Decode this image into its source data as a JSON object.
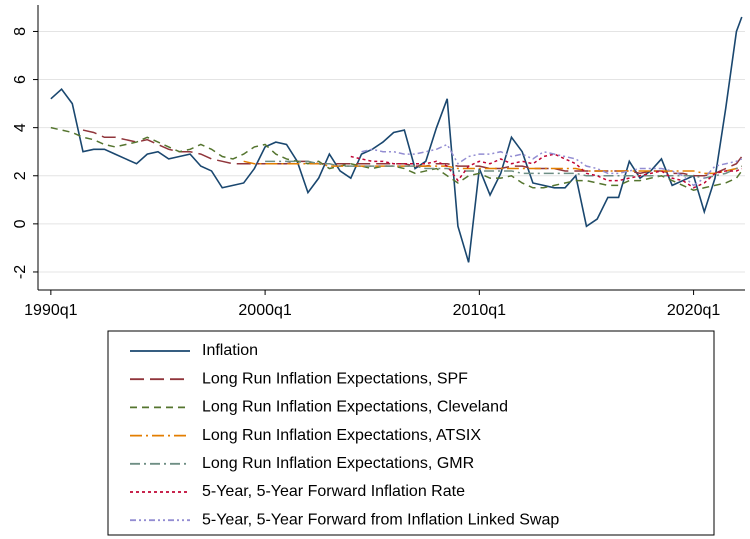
{
  "chart_data": {
    "type": "line",
    "x": [
      1990,
      1990.5,
      1991,
      1991.5,
      1992,
      1992.5,
      1993,
      1993.5,
      1994,
      1994.5,
      1995,
      1995.5,
      1996,
      1996.5,
      1997,
      1997.5,
      1998,
      1998.5,
      1999,
      1999.5,
      2000,
      2000.5,
      2001,
      2001.5,
      2002,
      2002.5,
      2003,
      2003.5,
      2004,
      2004.5,
      2005,
      2005.5,
      2006,
      2006.5,
      2007,
      2007.5,
      2008,
      2008.5,
      2009,
      2009.5,
      2010,
      2010.5,
      2011,
      2011.5,
      2012,
      2012.5,
      2013,
      2013.5,
      2014,
      2014.5,
      2015,
      2015.5,
      2016,
      2016.5,
      2017,
      2017.5,
      2018,
      2018.5,
      2019,
      2019.5,
      2020,
      2020.5,
      2021,
      2021.5,
      2022,
      2022.25
    ],
    "xlim": [
      1989.4,
      2022.4
    ],
    "xticks": [
      {
        "value": 1990,
        "label": "1990q1"
      },
      {
        "value": 2000,
        "label": "2000q1"
      },
      {
        "value": 2010,
        "label": "2010q1"
      },
      {
        "value": 2020,
        "label": "2020q1"
      }
    ],
    "ylim": [
      -2.75,
      9.1
    ],
    "yticks": [
      -2,
      0,
      2,
      4,
      6,
      8
    ],
    "grid": true,
    "series": [
      {
        "name": "Inflation",
        "color": "#1a476f",
        "values": [
          5.2,
          5.6,
          5.0,
          3.0,
          3.1,
          3.1,
          2.9,
          2.7,
          2.5,
          2.9,
          3.0,
          2.7,
          2.8,
          2.9,
          2.4,
          2.2,
          1.5,
          1.6,
          1.7,
          2.3,
          3.2,
          3.4,
          3.3,
          2.6,
          1.3,
          1.9,
          2.9,
          2.2,
          1.9,
          2.9,
          3.1,
          3.4,
          3.8,
          3.9,
          2.3,
          2.6,
          4.0,
          5.2,
          -0.1,
          -1.6,
          2.3,
          1.2,
          2.1,
          3.6,
          3.0,
          1.7,
          1.6,
          1.5,
          1.5,
          2.0,
          -0.1,
          0.2,
          1.1,
          1.1,
          2.6,
          1.9,
          2.2,
          2.7,
          1.6,
          1.8,
          2.0,
          0.5,
          1.9,
          4.8,
          8.0,
          8.6
        ]
      },
      {
        "name": "Long Run Inflation Expectations, SPF",
        "color": "#90353b",
        "values": [
          null,
          null,
          null,
          3.9,
          3.8,
          3.6,
          3.6,
          3.5,
          3.4,
          3.5,
          3.3,
          3.1,
          3.0,
          3.0,
          2.9,
          2.7,
          2.6,
          2.5,
          2.5,
          2.5,
          2.5,
          2.5,
          2.5,
          2.6,
          2.6,
          2.5,
          2.5,
          2.5,
          2.5,
          2.5,
          2.5,
          2.5,
          2.5,
          2.5,
          2.4,
          2.4,
          2.5,
          2.5,
          2.4,
          2.4,
          2.4,
          2.3,
          2.3,
          2.4,
          2.4,
          2.3,
          2.3,
          2.3,
          2.2,
          2.2,
          2.2,
          2.2,
          2.2,
          2.2,
          2.2,
          2.1,
          2.2,
          2.2,
          2.1,
          2.1,
          2.0,
          2.0,
          2.1,
          2.3,
          2.5,
          2.8
        ]
      },
      {
        "name": "Long Run Inflation Expectations, Cleveland",
        "color": "#55752f",
        "values": [
          4.0,
          3.9,
          3.8,
          3.6,
          3.5,
          3.3,
          3.2,
          3.3,
          3.4,
          3.6,
          3.4,
          3.2,
          3.0,
          3.1,
          3.3,
          3.1,
          2.8,
          2.7,
          2.9,
          3.2,
          3.3,
          2.9,
          2.7,
          2.6,
          2.5,
          2.6,
          2.3,
          2.4,
          2.5,
          2.4,
          2.3,
          2.4,
          2.4,
          2.3,
          2.1,
          2.2,
          2.3,
          2.0,
          1.7,
          2.0,
          2.1,
          1.9,
          1.9,
          2.0,
          1.7,
          1.5,
          1.5,
          1.6,
          1.7,
          1.8,
          1.8,
          1.7,
          1.6,
          1.6,
          1.8,
          1.8,
          1.9,
          2.0,
          1.8,
          1.6,
          1.4,
          1.5,
          1.6,
          1.7,
          1.9,
          2.2
        ]
      },
      {
        "name": "Long Run Inflation Expectations, ATSIX",
        "color": "#e37e00",
        "values": [
          null,
          null,
          null,
          null,
          null,
          null,
          null,
          null,
          null,
          null,
          null,
          null,
          null,
          null,
          null,
          null,
          null,
          null,
          2.6,
          2.5,
          2.5,
          2.5,
          2.5,
          2.5,
          2.5,
          2.5,
          2.4,
          2.4,
          2.4,
          2.4,
          2.4,
          2.4,
          2.4,
          2.4,
          2.4,
          2.4,
          2.4,
          2.4,
          2.3,
          2.3,
          2.3,
          2.3,
          2.3,
          2.3,
          2.3,
          2.3,
          2.3,
          2.3,
          2.3,
          2.3,
          2.2,
          2.2,
          2.2,
          2.2,
          2.2,
          2.2,
          2.2,
          2.2,
          2.2,
          2.2,
          2.2,
          2.1,
          2.1,
          2.2,
          2.3,
          2.4
        ]
      },
      {
        "name": "Long Run Inflation Expectations, GMR",
        "color": "#6e8e84",
        "values": [
          null,
          null,
          null,
          null,
          null,
          null,
          null,
          null,
          null,
          null,
          null,
          null,
          null,
          null,
          null,
          null,
          null,
          null,
          null,
          null,
          2.6,
          2.6,
          2.6,
          2.6,
          2.6,
          2.5,
          2.5,
          2.4,
          2.4,
          2.4,
          2.4,
          2.4,
          2.4,
          2.4,
          2.4,
          2.3,
          2.3,
          2.3,
          2.2,
          2.2,
          2.2,
          2.2,
          2.2,
          2.2,
          2.1,
          2.1,
          2.1,
          2.1,
          2.1,
          2.1,
          2.0,
          2.0,
          2.0,
          2.0,
          2.0,
          2.0,
          2.0,
          2.0,
          2.0,
          2.0,
          2.0,
          1.9,
          2.0,
          2.1,
          2.3,
          2.4
        ]
      },
      {
        "name": "5-Year, 5-Year Forward Inflation Rate",
        "color": "#c10534",
        "values": [
          null,
          null,
          null,
          null,
          null,
          null,
          null,
          null,
          null,
          null,
          null,
          null,
          null,
          null,
          null,
          null,
          null,
          null,
          null,
          null,
          null,
          null,
          null,
          null,
          null,
          null,
          null,
          null,
          2.8,
          2.7,
          2.6,
          2.6,
          2.5,
          2.5,
          2.5,
          2.5,
          2.6,
          2.4,
          1.8,
          2.4,
          2.6,
          2.5,
          2.7,
          2.5,
          2.6,
          2.5,
          2.8,
          2.9,
          2.7,
          2.5,
          2.1,
          2.0,
          1.8,
          1.8,
          1.9,
          2.0,
          2.1,
          2.2,
          1.9,
          1.8,
          1.5,
          1.7,
          2.1,
          2.2,
          2.2,
          2.3
        ]
      },
      {
        "name": "5-Year, 5-Year Forward from Inflation Linked Swap",
        "color": "#938dd2",
        "values": [
          null,
          null,
          null,
          null,
          null,
          null,
          null,
          null,
          null,
          null,
          null,
          null,
          null,
          null,
          null,
          null,
          null,
          null,
          null,
          null,
          null,
          null,
          null,
          null,
          null,
          null,
          null,
          null,
          null,
          3.0,
          3.1,
          3.0,
          3.0,
          2.9,
          2.9,
          3.0,
          3.1,
          3.3,
          2.5,
          2.8,
          2.9,
          2.9,
          3.0,
          2.8,
          2.9,
          2.7,
          3.0,
          2.9,
          2.8,
          2.7,
          2.4,
          2.3,
          2.1,
          2.1,
          2.2,
          2.3,
          2.3,
          2.3,
          2.2,
          2.0,
          1.6,
          1.9,
          2.4,
          2.5,
          2.6,
          2.7
        ]
      }
    ]
  }
}
